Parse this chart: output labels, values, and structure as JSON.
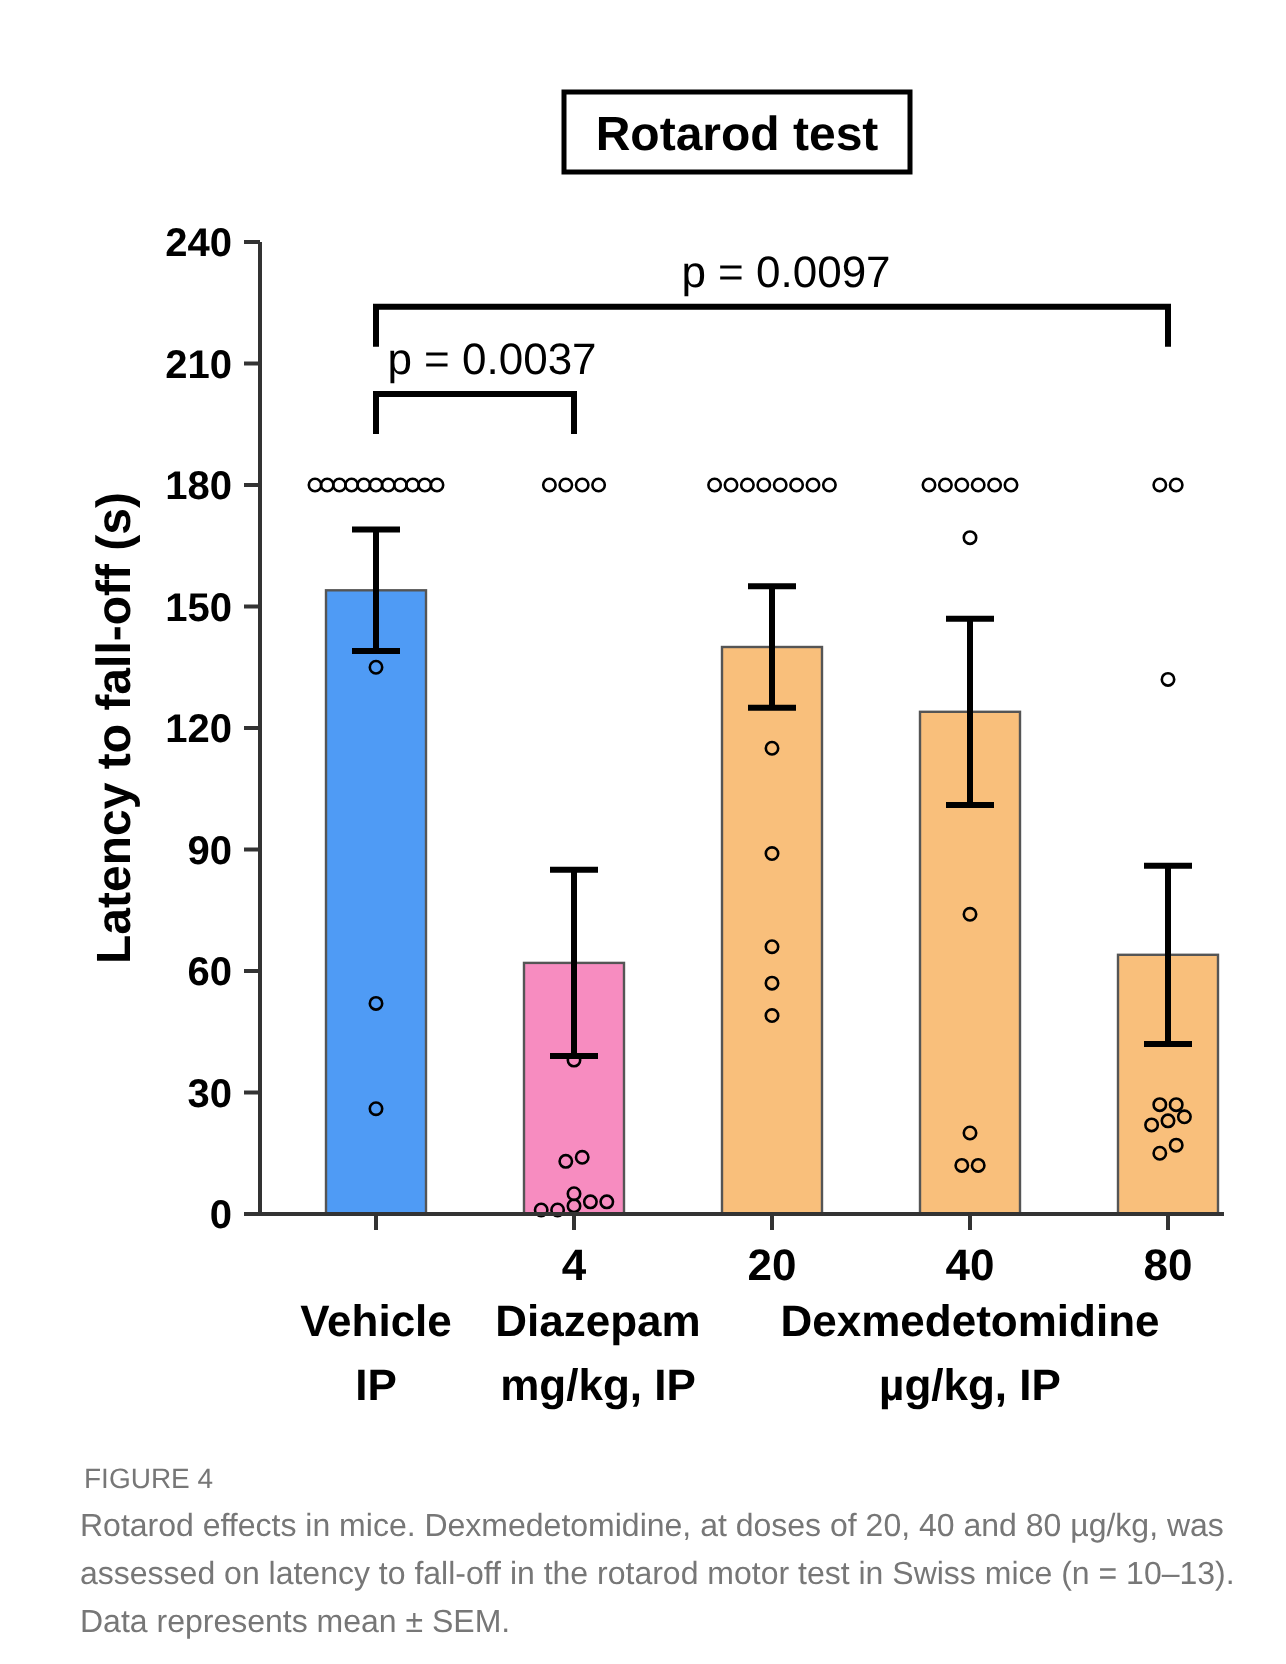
{
  "chart_data": {
    "type": "bar",
    "title": "Rotarod test",
    "ylabel": "Latency to fall-off (s)",
    "categories": [
      null,
      "4",
      "20",
      "40",
      "80"
    ],
    "ylim": [
      0,
      240
    ],
    "yticks": [
      0,
      30,
      60,
      90,
      120,
      150,
      180,
      210,
      240
    ],
    "series": [
      {
        "values": [
          154,
          62,
          140,
          124,
          64
        ],
        "colors": [
          "#4f9bf5",
          "#f78cc0",
          "#f9bf7b",
          "#f9bf7b",
          "#f9bf7b"
        ],
        "errors": [
          15,
          23,
          15,
          23,
          22
        ]
      },
      {
        "type": "scatter",
        "color": "#000000",
        "marker": "circle",
        "x": [
          null,
          null,
          null,
          null,
          null,
          null,
          null,
          null,
          null,
          null,
          null,
          null,
          null,
          null,
          "4",
          "4",
          "4",
          "4",
          "4",
          "4",
          "4",
          "4",
          "4",
          "4",
          "4",
          "4",
          "4",
          "20",
          "20",
          "20",
          "20",
          "20",
          "20",
          "20",
          "20",
          "20",
          "20",
          "20",
          "20",
          "20",
          "40",
          "40",
          "40",
          "40",
          "40",
          "40",
          "40",
          "40",
          "40",
          "40",
          "40",
          "80",
          "80",
          "80",
          "80",
          "80",
          "80",
          "80",
          "80",
          "80",
          "80"
        ],
        "values": [
          180,
          180,
          180,
          180,
          180,
          180,
          180,
          180,
          180,
          180,
          180,
          135,
          52,
          26,
          180,
          180,
          180,
          180,
          38,
          13,
          14,
          2,
          5,
          1,
          3,
          1,
          3,
          180,
          180,
          180,
          180,
          180,
          180,
          180,
          180,
          115,
          89,
          66,
          57,
          49,
          180,
          180,
          180,
          180,
          180,
          180,
          167,
          74,
          20,
          12,
          12,
          180,
          180,
          132,
          24,
          27,
          27,
          22,
          23,
          15,
          17
        ]
      }
    ],
    "annotations": [
      "p = 0.0037",
      "p = 0.0097",
      "Vehicle\nIP",
      "Diazepam\nmg/kg, IP",
      "Dexmedetomidine\nµg/kg, IP",
      "FIGURE 4",
      "Rotarod effects in mice. Dexmedetomidine, at doses of 20, 40 and 80 µg/kg, was assessed on latency to fall-off in the rotarod motor test in Swiss mice (n = 10–13). Data represents mean ± SEM."
    ]
  }
}
